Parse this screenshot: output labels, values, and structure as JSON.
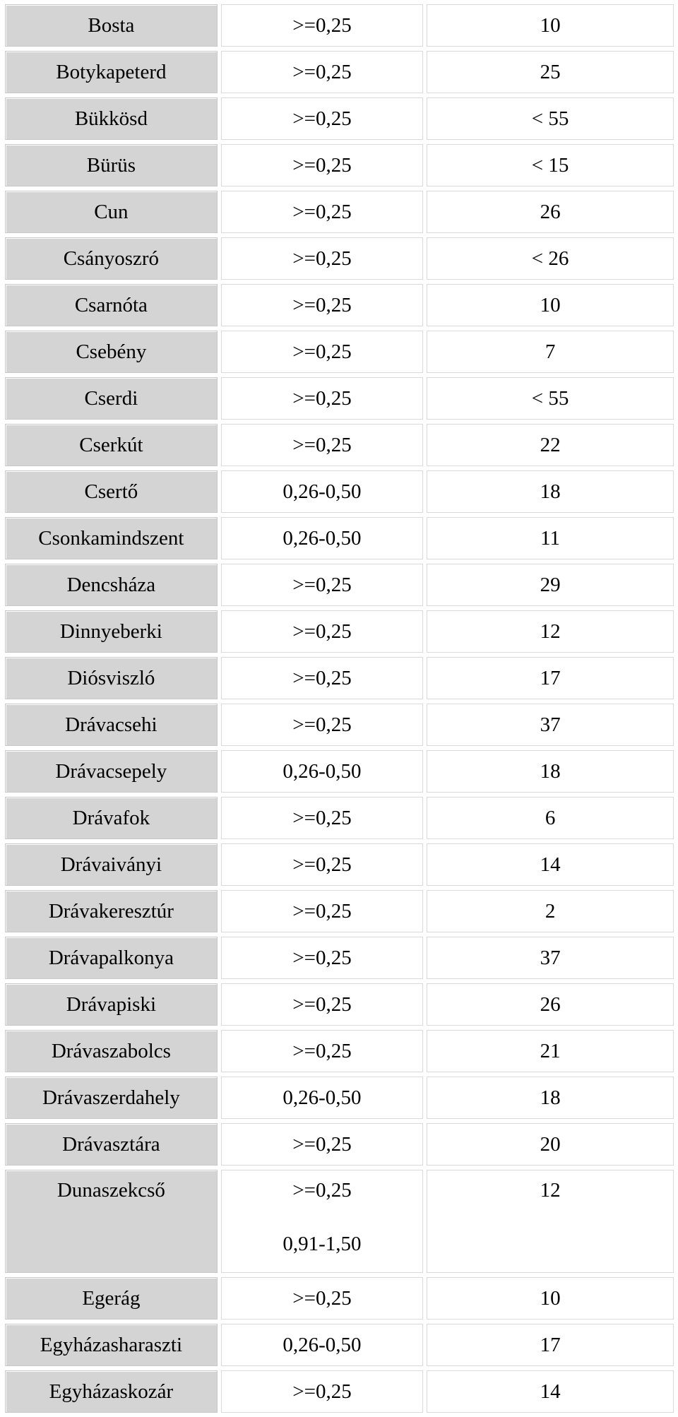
{
  "rows": [
    {
      "name": "Bosta",
      "range": ">=0,25",
      "count": "10"
    },
    {
      "name": "Botykapeterd",
      "range": ">=0,25",
      "count": "25"
    },
    {
      "name": "Bükkösd",
      "range": ">=0,25",
      "count": "< 55"
    },
    {
      "name": "Bürüs",
      "range": ">=0,25",
      "count": "< 15"
    },
    {
      "name": "Cun",
      "range": ">=0,25",
      "count": "26"
    },
    {
      "name": "Csányoszró",
      "range": ">=0,25",
      "count": "< 26"
    },
    {
      "name": "Csarnóta",
      "range": ">=0,25",
      "count": "10"
    },
    {
      "name": "Csebény",
      "range": ">=0,25",
      "count": "7"
    },
    {
      "name": "Cserdi",
      "range": ">=0,25",
      "count": "< 55"
    },
    {
      "name": "Cserkút",
      "range": ">=0,25",
      "count": "22"
    },
    {
      "name": "Csertő",
      "range": "0,26-0,50",
      "count": "18"
    },
    {
      "name": "Csonkamindszent",
      "range": "0,26-0,50",
      "count": "11"
    },
    {
      "name": "Dencsháza",
      "range": ">=0,25",
      "count": "29"
    },
    {
      "name": "Dinnyeberki",
      "range": ">=0,25",
      "count": "12"
    },
    {
      "name": "Diósviszló",
      "range": ">=0,25",
      "count": "17"
    },
    {
      "name": "Drávacsehi",
      "range": ">=0,25",
      "count": "37"
    },
    {
      "name": "Drávacsepely",
      "range": "0,26-0,50",
      "count": "18"
    },
    {
      "name": "Drávafok",
      "range": ">=0,25",
      "count": "6"
    },
    {
      "name": "Drávaiványi",
      "range": ">=0,25",
      "count": "14"
    },
    {
      "name": "Drávakeresztúr",
      "range": ">=0,25",
      "count": "2"
    },
    {
      "name": "Drávapalkonya",
      "range": ">=0,25",
      "count": "37"
    },
    {
      "name": "Drávapiski",
      "range": ">=0,25",
      "count": "26"
    },
    {
      "name": "Drávaszabolcs",
      "range": ">=0,25",
      "count": "21"
    },
    {
      "name": "Drávaszerdahely",
      "range": "0,26-0,50",
      "count": "18"
    },
    {
      "name": "Drávasztára",
      "range": ">=0,25",
      "count": "20"
    },
    {
      "name": "Dunaszekcső",
      "range": ">=0,25",
      "range_2": "0,91-1,50",
      "count": "12"
    },
    {
      "name": "Egerág",
      "range": ">=0,25",
      "count": "10"
    },
    {
      "name": "Egyházasharaszti",
      "range": "0,26-0,50",
      "count": "17"
    },
    {
      "name": "Egyházaskozár",
      "range": ">=0,25",
      "count": "14"
    }
  ]
}
